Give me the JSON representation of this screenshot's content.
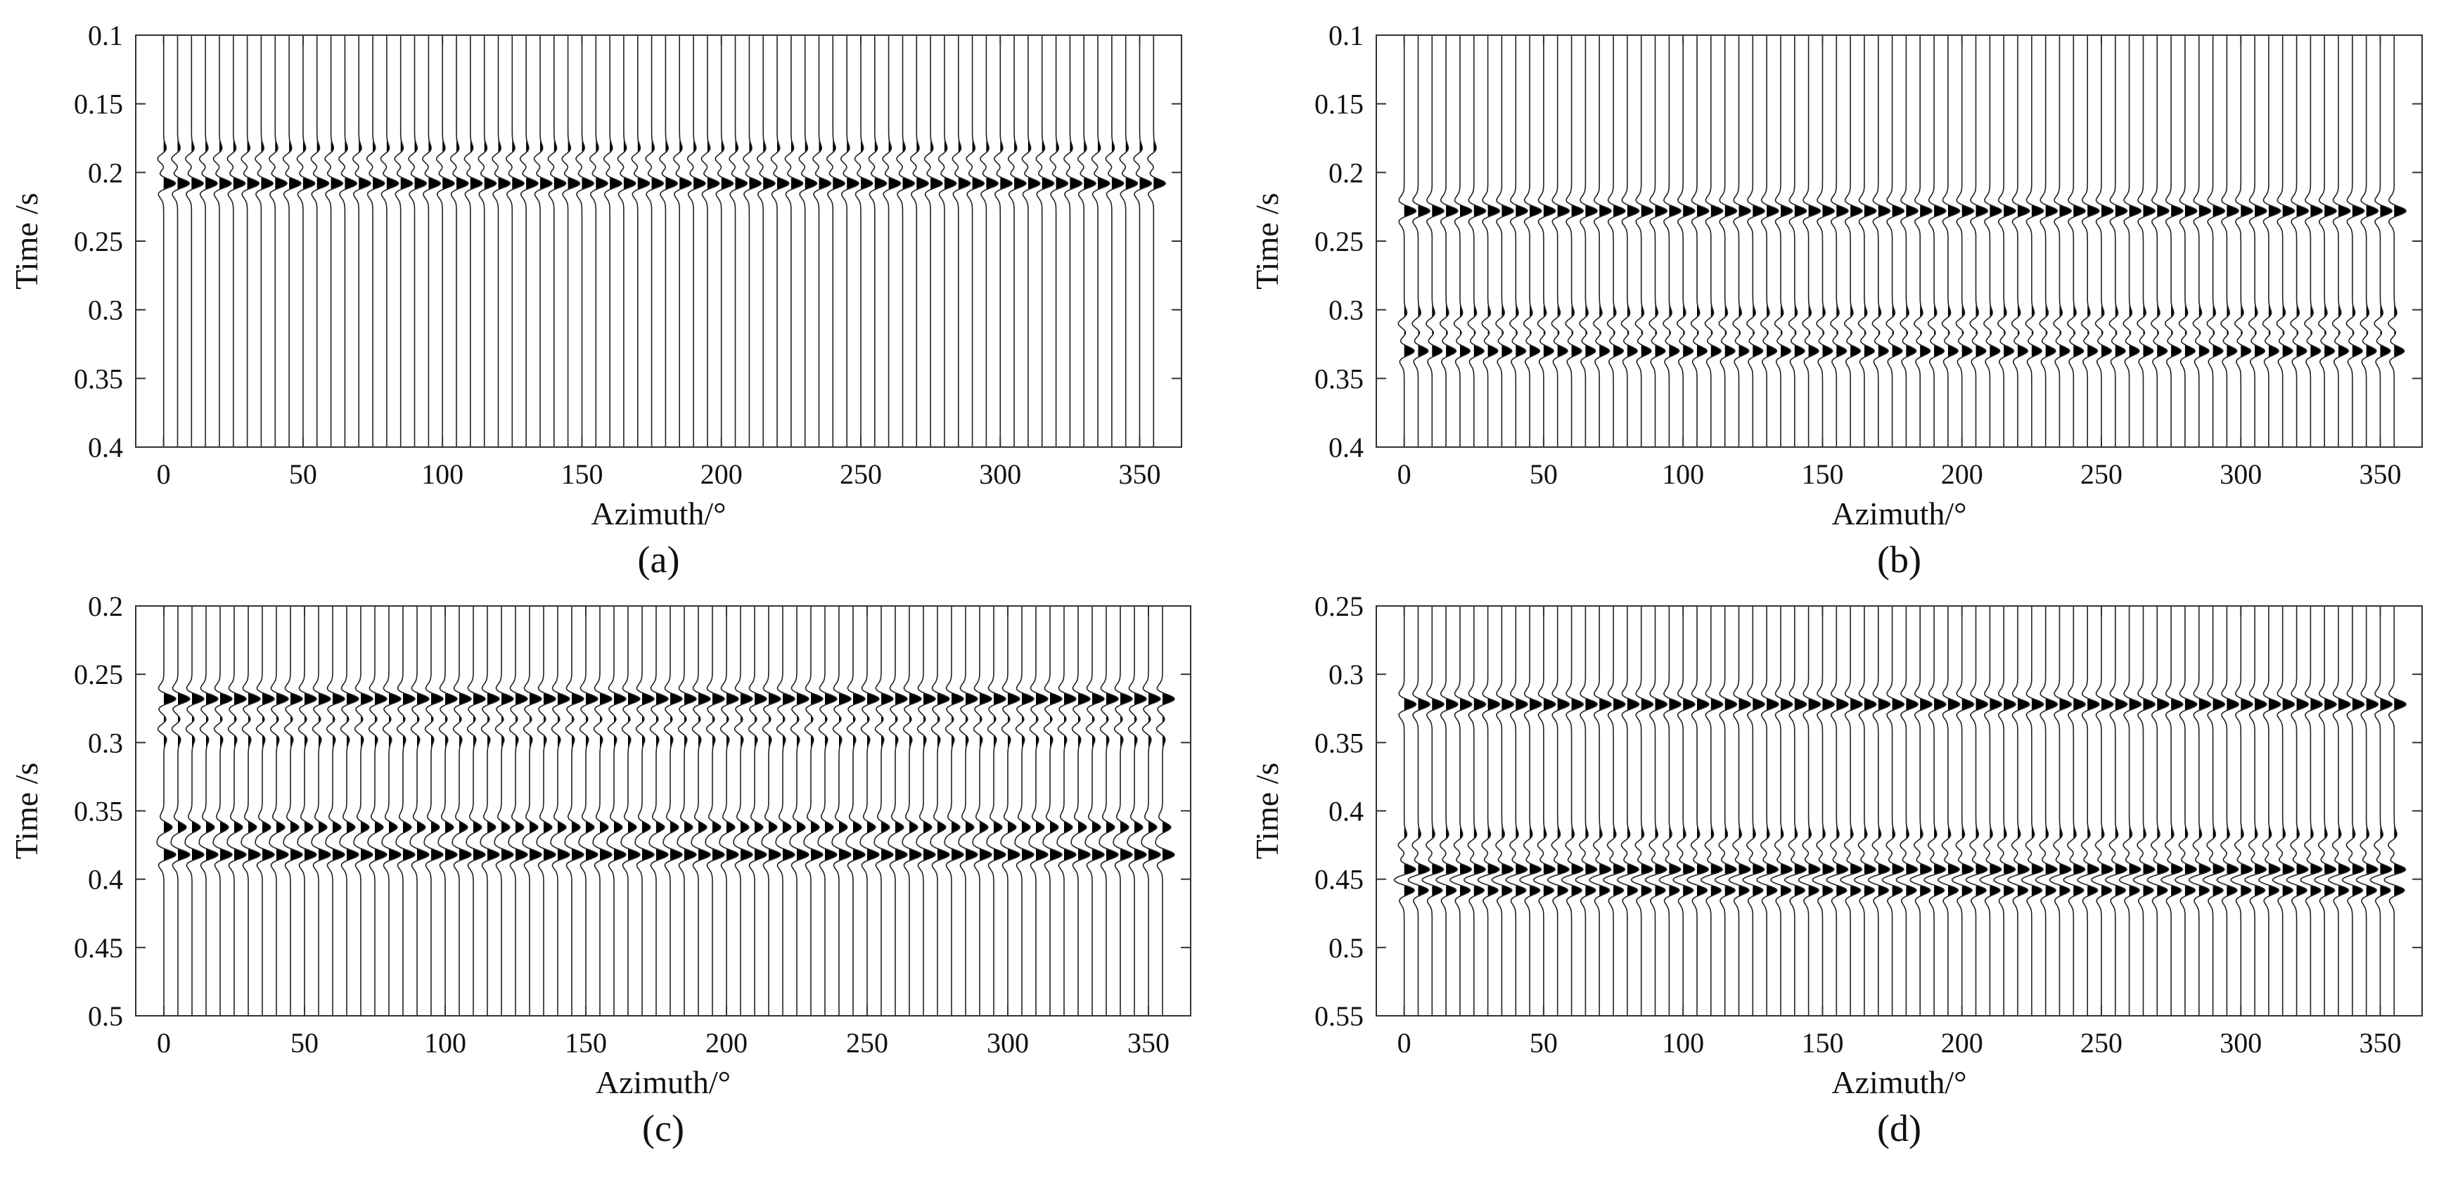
{
  "chart_data": [
    {
      "type": "wiggle",
      "panel_label": "(a)",
      "xlabel": "Azimuth/°",
      "ylabel": "Time /s",
      "ylim": [
        0.1,
        0.4
      ],
      "y_reversed": true,
      "xlim": [
        -10,
        365
      ],
      "xticks": [
        0,
        50,
        100,
        150,
        200,
        250,
        300,
        350
      ],
      "yticks": [
        0.1,
        0.15,
        0.2,
        0.25,
        0.3,
        0.35,
        0.4
      ],
      "ytick_labels": [
        "0.1",
        "0.15",
        "0.2",
        "0.25",
        "0.3",
        "0.35",
        "0.4"
      ],
      "trace_azimuth_step": 5,
      "trace_azimuth_range": [
        0,
        360
      ],
      "events": [
        {
          "time": 0.208,
          "amplitude": 1.0
        },
        {
          "time": 0.19,
          "amplitude": -0.5
        }
      ]
    },
    {
      "type": "wiggle",
      "panel_label": "(b)",
      "xlabel": "Azimuth/°",
      "ylabel": "Time /s",
      "ylim": [
        0.1,
        0.4
      ],
      "y_reversed": true,
      "xlim": [
        -10,
        365
      ],
      "xticks": [
        0,
        50,
        100,
        150,
        200,
        250,
        300,
        350
      ],
      "yticks": [
        0.1,
        0.15,
        0.2,
        0.25,
        0.3,
        0.35,
        0.4
      ],
      "ytick_labels": [
        "0.1",
        "0.15",
        "0.2",
        "0.25",
        "0.3",
        "0.35",
        "0.4"
      ],
      "trace_azimuth_step": 5,
      "trace_azimuth_range": [
        0,
        360
      ],
      "events": [
        {
          "time": 0.228,
          "amplitude": 1.0
        },
        {
          "time": 0.33,
          "amplitude": 0.85
        },
        {
          "time": 0.31,
          "amplitude": -0.5
        }
      ]
    },
    {
      "type": "wiggle",
      "panel_label": "(c)",
      "xlabel": "Azimuth/°",
      "ylabel": "Time /s",
      "ylim": [
        0.2,
        0.5
      ],
      "y_reversed": true,
      "xlim": [
        -10,
        365
      ],
      "xticks": [
        0,
        50,
        100,
        150,
        200,
        250,
        300,
        350
      ],
      "yticks": [
        0.2,
        0.25,
        0.3,
        0.35,
        0.4,
        0.45,
        0.5
      ],
      "ytick_labels": [
        "0.2",
        "0.25",
        "0.3",
        "0.35",
        "0.4",
        "0.45",
        "0.5"
      ],
      "trace_azimuth_step": 5,
      "trace_azimuth_range": [
        0,
        360
      ],
      "events": [
        {
          "time": 0.268,
          "amplitude": 1.0
        },
        {
          "time": 0.362,
          "amplitude": 0.7
        },
        {
          "time": 0.382,
          "amplitude": 1.0
        },
        {
          "time": 0.29,
          "amplitude": -0.5
        }
      ]
    },
    {
      "type": "wiggle",
      "panel_label": "(d)",
      "xlabel": "Azimuth/°",
      "ylabel": "Time /s",
      "ylim": [
        0.25,
        0.55
      ],
      "y_reversed": true,
      "xlim": [
        -10,
        365
      ],
      "xticks": [
        0,
        50,
        100,
        150,
        200,
        250,
        300,
        350
      ],
      "yticks": [
        0.25,
        0.3,
        0.35,
        0.4,
        0.45,
        0.5,
        0.55
      ],
      "ytick_labels": [
        "0.25",
        "0.3",
        "0.35",
        "0.4",
        "0.45",
        "0.5",
        "0.55"
      ],
      "trace_azimuth_step": 5,
      "trace_azimuth_range": [
        0,
        360
      ],
      "events": [
        {
          "time": 0.322,
          "amplitude": 1.0
        },
        {
          "time": 0.443,
          "amplitude": 1.0
        },
        {
          "time": 0.458,
          "amplitude": 0.9
        },
        {
          "time": 0.425,
          "amplitude": -0.5
        }
      ]
    }
  ]
}
